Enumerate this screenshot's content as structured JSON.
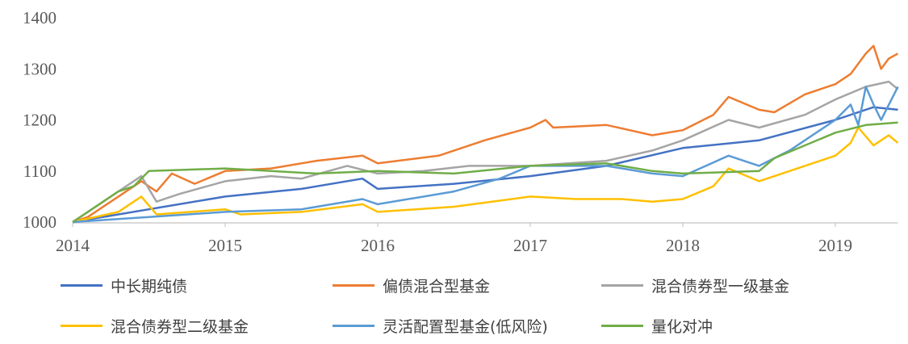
{
  "chart_data": {
    "type": "line",
    "title": "",
    "xlabel": "",
    "ylabel": "",
    "xlim": [
      2014,
      2019.41
    ],
    "ylim": [
      1000,
      1400
    ],
    "yticks": [
      1000,
      1100,
      1200,
      1300,
      1400
    ],
    "xticks": [
      2014,
      2015,
      2016,
      2017,
      2018,
      2019
    ],
    "grid": false,
    "legend_position": "bottom",
    "series": [
      {
        "name": "中长期纯债",
        "color": "#4472C4",
        "x": [
          2014,
          2014.5,
          2014.6,
          2015.0,
          2015.5,
          2015.9,
          2016.0,
          2016.5,
          2017.0,
          2017.5,
          2018.0,
          2018.5,
          2019.0,
          2019.25,
          2019.41
        ],
        "y": [
          1000,
          1025,
          1030,
          1050,
          1065,
          1085,
          1065,
          1075,
          1090,
          1110,
          1145,
          1160,
          1200,
          1225,
          1220
        ]
      },
      {
        "name": "偏债混合型基金",
        "color": "#ED7D31",
        "x": [
          2014,
          2014.1,
          2014.3,
          2014.45,
          2014.55,
          2014.65,
          2014.8,
          2015.0,
          2015.3,
          2015.6,
          2015.9,
          2016.0,
          2016.4,
          2016.7,
          2017.0,
          2017.1,
          2017.15,
          2017.5,
          2017.8,
          2018.0,
          2018.2,
          2018.3,
          2018.5,
          2018.6,
          2018.8,
          2019.0,
          2019.1,
          2019.2,
          2019.25,
          2019.3,
          2019.35,
          2019.41
        ],
        "y": [
          1000,
          1010,
          1050,
          1080,
          1060,
          1095,
          1075,
          1100,
          1105,
          1120,
          1130,
          1115,
          1130,
          1160,
          1185,
          1200,
          1185,
          1190,
          1170,
          1180,
          1210,
          1245,
          1220,
          1215,
          1250,
          1270,
          1290,
          1330,
          1345,
          1300,
          1320,
          1330
        ]
      },
      {
        "name": "混合债券型一级基金",
        "color": "#A5A5A5",
        "x": [
          2014,
          2014.45,
          2014.55,
          2014.7,
          2015.0,
          2015.3,
          2015.5,
          2015.8,
          2016.0,
          2016.3,
          2016.6,
          2017.0,
          2017.5,
          2017.8,
          2018.0,
          2018.3,
          2018.5,
          2018.8,
          2019.0,
          2019.2,
          2019.35,
          2019.41
        ],
        "y": [
          1000,
          1090,
          1040,
          1055,
          1080,
          1090,
          1085,
          1110,
          1095,
          1100,
          1110,
          1110,
          1120,
          1140,
          1160,
          1200,
          1185,
          1210,
          1240,
          1265,
          1275,
          1260
        ]
      },
      {
        "name": "混合债券型二级基金",
        "color": "#FFC000",
        "x": [
          2014,
          2014.3,
          2014.45,
          2014.55,
          2015.0,
          2015.1,
          2015.5,
          2015.9,
          2016.0,
          2016.5,
          2017.0,
          2017.3,
          2017.6,
          2017.8,
          2018.0,
          2018.2,
          2018.3,
          2018.5,
          2018.7,
          2019.0,
          2019.1,
          2019.15,
          2019.25,
          2019.35,
          2019.41
        ],
        "y": [
          1000,
          1020,
          1050,
          1015,
          1025,
          1015,
          1020,
          1035,
          1020,
          1030,
          1050,
          1045,
          1045,
          1040,
          1045,
          1070,
          1105,
          1080,
          1100,
          1130,
          1155,
          1185,
          1150,
          1170,
          1155
        ]
      },
      {
        "name": "灵活配置型基金(低风险)",
        "color": "#5B9BD5",
        "x": [
          2014,
          2014.5,
          2015.0,
          2015.5,
          2015.9,
          2016.0,
          2016.5,
          2016.8,
          2017.0,
          2017.5,
          2017.8,
          2018.0,
          2018.3,
          2018.5,
          2018.7,
          2019.0,
          2019.1,
          2019.15,
          2019.2,
          2019.25,
          2019.3,
          2019.41
        ],
        "y": [
          1000,
          1010,
          1020,
          1025,
          1045,
          1035,
          1060,
          1085,
          1110,
          1110,
          1095,
          1090,
          1130,
          1110,
          1140,
          1200,
          1230,
          1190,
          1265,
          1230,
          1200,
          1265
        ]
      },
      {
        "name": "量化对冲",
        "color": "#70AD47",
        "x": [
          2014,
          2014.1,
          2014.3,
          2014.4,
          2014.5,
          2015.0,
          2015.3,
          2015.6,
          2016.0,
          2016.5,
          2017.0,
          2017.5,
          2017.8,
          2018.0,
          2018.5,
          2018.6,
          2019.0,
          2019.2,
          2019.41
        ],
        "y": [
          1000,
          1020,
          1060,
          1070,
          1100,
          1105,
          1100,
          1095,
          1100,
          1095,
          1110,
          1115,
          1100,
          1095,
          1100,
          1125,
          1175,
          1190,
          1195
        ]
      }
    ]
  }
}
